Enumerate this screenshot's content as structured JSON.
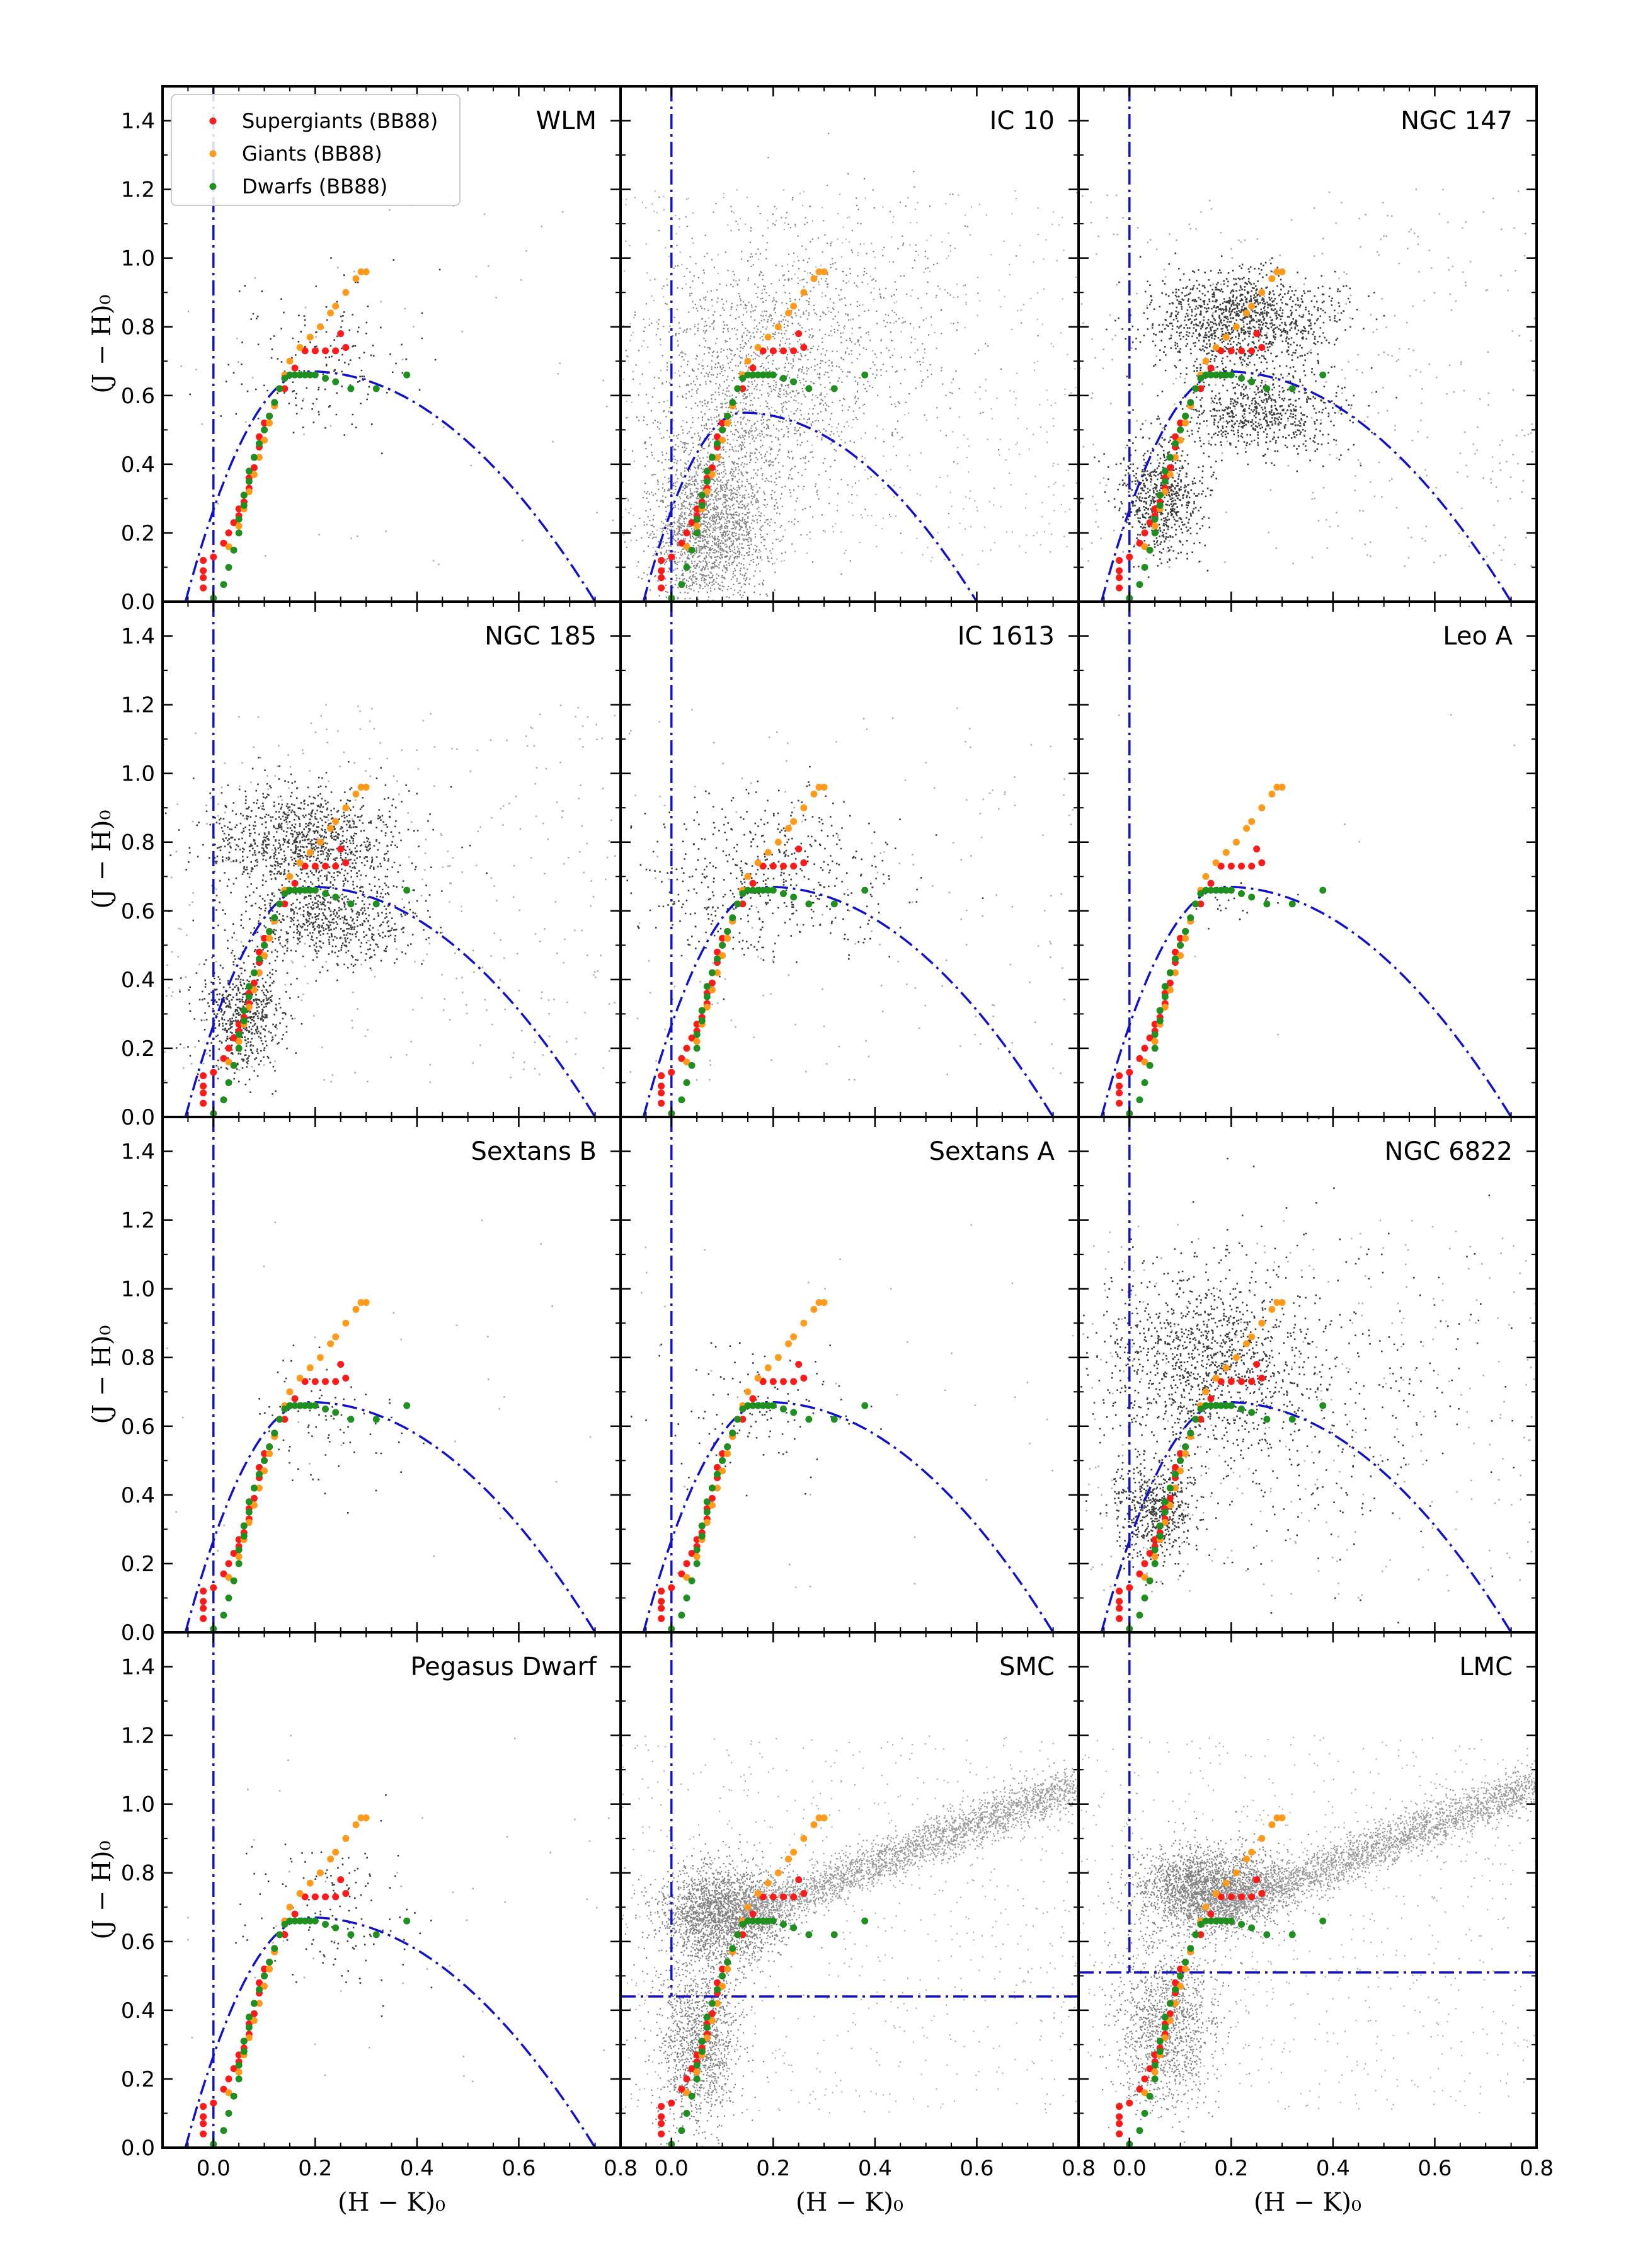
{
  "figure": {
    "xlabel": "(H − K)₀",
    "ylabel": "(J − H)₀",
    "xlim": [
      -0.1,
      0.8
    ],
    "ylim": [
      0.0,
      1.5
    ],
    "xticks": [
      0.0,
      0.2,
      0.4,
      0.6,
      0.8
    ],
    "xtick_labels": [
      "0.0",
      "0.2",
      "0.4",
      "0.6",
      "0.8"
    ],
    "yticks": [
      0.0,
      0.2,
      0.4,
      0.6,
      0.8,
      1.0,
      1.2,
      1.4
    ],
    "ytick_labels": [
      "0.0",
      "0.2",
      "0.4",
      "0.6",
      "0.8",
      "1.0",
      "1.2",
      "1.4"
    ],
    "colors": {
      "supergiants": "#ff1a1a",
      "giants": "#ff9a1a",
      "dwarfs": "#1f8f1f",
      "boundary": "#1111cc",
      "sources": "#000000"
    }
  },
  "legend": {
    "position": "top-left of first panel",
    "entries": [
      {
        "label": "Supergiants (BB88)",
        "color": "#ff1a1a"
      },
      {
        "label": "Giants (BB88)",
        "color": "#ff9a1a"
      },
      {
        "label": "Dwarfs (BB88)",
        "color": "#1f8f1f"
      }
    ]
  },
  "chart_data": {
    "type": "scatter",
    "grid": false,
    "layout": "4x3 panels, shared axes",
    "series": [
      {
        "name": "Supergiants (BB88)",
        "x": [
          -0.02,
          -0.02,
          -0.02,
          -0.02,
          0.0,
          0.02,
          0.03,
          0.04,
          0.05,
          0.05,
          0.06,
          0.06,
          0.07,
          0.07,
          0.08,
          0.08,
          0.09,
          0.09,
          0.1,
          0.1,
          0.11,
          0.12,
          0.14,
          0.16,
          0.18,
          0.2,
          0.22,
          0.24,
          0.26,
          0.25
        ],
        "y": [
          0.04,
          0.07,
          0.09,
          0.12,
          0.13,
          0.17,
          0.2,
          0.23,
          0.25,
          0.27,
          0.29,
          0.31,
          0.33,
          0.36,
          0.39,
          0.42,
          0.45,
          0.48,
          0.5,
          0.52,
          0.54,
          0.57,
          0.62,
          0.68,
          0.73,
          0.73,
          0.73,
          0.73,
          0.74,
          0.78
        ]
      },
      {
        "name": "Giants (BB88)",
        "x": [
          0.03,
          0.05,
          0.06,
          0.07,
          0.08,
          0.09,
          0.1,
          0.11,
          0.12,
          0.13,
          0.14,
          0.15,
          0.17,
          0.19,
          0.21,
          0.23,
          0.24,
          0.26,
          0.28,
          0.29,
          0.3
        ],
        "y": [
          0.16,
          0.22,
          0.27,
          0.32,
          0.37,
          0.42,
          0.47,
          0.52,
          0.57,
          0.62,
          0.66,
          0.7,
          0.74,
          0.77,
          0.8,
          0.84,
          0.86,
          0.9,
          0.94,
          0.96,
          0.96
        ]
      },
      {
        "name": "Dwarfs (BB88)",
        "x": [
          0.0,
          0.02,
          0.03,
          0.04,
          0.05,
          0.05,
          0.06,
          0.06,
          0.07,
          0.07,
          0.08,
          0.09,
          0.1,
          0.11,
          0.12,
          0.13,
          0.14,
          0.15,
          0.16,
          0.17,
          0.18,
          0.19,
          0.2,
          0.22,
          0.24,
          0.27,
          0.32,
          0.38
        ],
        "y": [
          0.01,
          0.05,
          0.1,
          0.15,
          0.2,
          0.24,
          0.28,
          0.31,
          0.35,
          0.38,
          0.42,
          0.46,
          0.5,
          0.54,
          0.58,
          0.62,
          0.65,
          0.66,
          0.66,
          0.66,
          0.66,
          0.66,
          0.66,
          0.65,
          0.64,
          0.62,
          0.62,
          0.66
        ]
      }
    ],
    "panels": [
      {
        "label": "WLM",
        "boundary": "curve",
        "density": "sparse",
        "centers": [
          [
            0.2,
            0.7,
            0.09,
            0.11
          ]
        ],
        "count": 320
      },
      {
        "label": "IC 10",
        "boundary": "curve",
        "density": "very-dense",
        "centers": [
          [
            0.07,
            0.22,
            0.06,
            0.12
          ],
          [
            0.14,
            0.55,
            0.09,
            0.2
          ],
          [
            0.25,
            0.75,
            0.15,
            0.2
          ]
        ],
        "count": 3200,
        "boundary_peak": 0.55
      },
      {
        "label": "NGC 147",
        "boundary": "curve",
        "density": "dense",
        "centers": [
          [
            0.22,
            0.82,
            0.09,
            0.07
          ],
          [
            0.26,
            0.55,
            0.08,
            0.06
          ],
          [
            0.06,
            0.3,
            0.04,
            0.08
          ]
        ],
        "count": 2200
      },
      {
        "label": "NGC 185",
        "boundary": "curve",
        "density": "dense",
        "centers": [
          [
            0.18,
            0.8,
            0.1,
            0.08
          ],
          [
            0.22,
            0.56,
            0.08,
            0.06
          ],
          [
            0.06,
            0.3,
            0.04,
            0.08
          ]
        ],
        "count": 2000
      },
      {
        "label": "IC 1613",
        "boundary": "curve",
        "density": "medium",
        "centers": [
          [
            0.18,
            0.7,
            0.11,
            0.12
          ]
        ],
        "count": 900
      },
      {
        "label": "Leo A",
        "boundary": "curve",
        "density": "sparse",
        "centers": [
          [
            0.22,
            0.62,
            0.06,
            0.05
          ]
        ],
        "count": 40
      },
      {
        "label": "Sextans B",
        "boundary": "curve",
        "density": "sparse",
        "centers": [
          [
            0.22,
            0.6,
            0.08,
            0.1
          ]
        ],
        "count": 150
      },
      {
        "label": "Sextans A",
        "boundary": "curve",
        "density": "sparse",
        "centers": [
          [
            0.16,
            0.65,
            0.09,
            0.1
          ]
        ],
        "count": 200
      },
      {
        "label": "NGC 6822",
        "boundary": "curve",
        "density": "dense",
        "centers": [
          [
            0.14,
            0.78,
            0.1,
            0.12
          ],
          [
            0.05,
            0.35,
            0.04,
            0.07
          ],
          [
            0.3,
            0.7,
            0.2,
            0.25
          ]
        ],
        "count": 1800
      },
      {
        "label": "Pegasus Dwarf",
        "boundary": "curve",
        "density": "sparse",
        "centers": [
          [
            0.22,
            0.68,
            0.08,
            0.12
          ]
        ],
        "count": 250
      },
      {
        "label": "SMC",
        "boundary": "lines",
        "hline": 0.44,
        "density": "very-dense",
        "centers": [
          [
            0.1,
            0.68,
            0.06,
            0.07
          ],
          [
            0.05,
            0.3,
            0.04,
            0.12
          ]
        ],
        "sequence": true,
        "count": 4000
      },
      {
        "label": "LMC",
        "boundary": "lines",
        "hline": 0.51,
        "density": "very-dense",
        "centers": [
          [
            0.16,
            0.75,
            0.07,
            0.06
          ],
          [
            0.07,
            0.35,
            0.05,
            0.12
          ]
        ],
        "sequence": true,
        "count": 4000
      }
    ]
  }
}
